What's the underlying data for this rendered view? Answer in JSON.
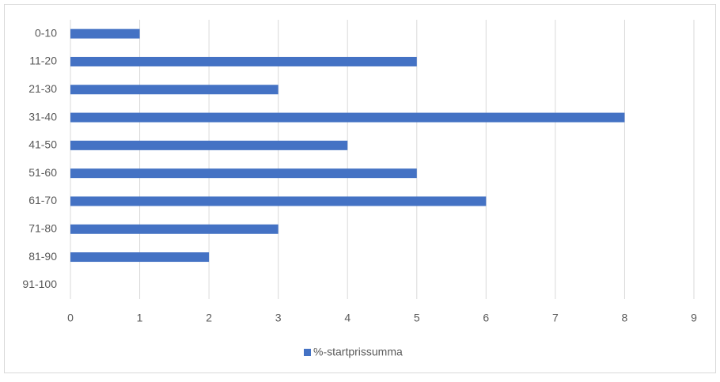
{
  "chart_data": {
    "type": "bar",
    "orientation": "horizontal",
    "categories": [
      "0-10",
      "11-20",
      "21-30",
      "31-40",
      "41-50",
      "51-60",
      "61-70",
      "71-80",
      "81-90",
      "91-100"
    ],
    "series": [
      {
        "name": "%-startprissumma",
        "color": "#4472c4",
        "values": [
          1,
          5,
          3,
          8,
          4,
          5,
          6,
          3,
          2,
          0
        ]
      }
    ],
    "xlim": [
      0,
      9
    ],
    "xticks": [
      0,
      1,
      2,
      3,
      4,
      5,
      6,
      7,
      8,
      9
    ],
    "grid": true,
    "legend": "bottom"
  }
}
